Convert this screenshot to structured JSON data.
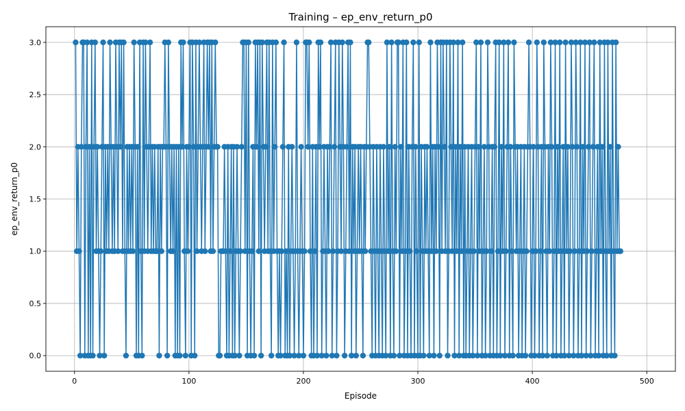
{
  "chart_data": {
    "type": "line",
    "title": "Training – ep_env_return_p0",
    "xlabel": "Episode",
    "ylabel": "ep_env_return_p0",
    "xlim": [
      -25,
      525
    ],
    "ylim": [
      -0.15,
      3.15
    ],
    "xticks": [
      0,
      100,
      200,
      300,
      400,
      500
    ],
    "xtick_labels": [
      "0",
      "100",
      "200",
      "300",
      "400",
      "500"
    ],
    "yticks": [
      0.0,
      0.5,
      1.0,
      1.5,
      2.0,
      2.5,
      3.0
    ],
    "ytick_labels": [
      "0.0",
      "0.5",
      "1.0",
      "1.5",
      "2.0",
      "2.5",
      "3.0"
    ],
    "grid": true,
    "marker": "circle",
    "series": [
      {
        "name": "ep_env_return_p0",
        "color": "#1f77b4",
        "x_start": 1,
        "x_step": 1,
        "values": [
          3,
          1,
          2,
          1,
          0,
          2,
          3,
          3,
          0,
          2,
          3,
          0,
          2,
          0,
          3,
          0,
          2,
          3,
          1,
          2,
          1,
          0,
          1,
          2,
          3,
          0,
          2,
          1,
          2,
          1,
          3,
          2,
          1,
          2,
          1,
          3,
          2,
          1,
          3,
          2,
          3,
          1,
          3,
          1,
          0,
          2,
          1,
          2,
          1,
          2,
          1,
          3,
          2,
          0,
          2,
          0,
          3,
          1,
          0,
          3,
          1,
          3,
          2,
          1,
          2,
          3,
          1,
          2,
          1,
          2,
          1,
          1,
          2,
          0,
          2,
          1,
          2,
          2,
          3,
          2,
          0,
          3,
          2,
          1,
          2,
          1,
          2,
          0,
          2,
          0,
          2,
          0,
          3,
          2,
          3,
          1,
          0,
          2,
          1,
          2,
          3,
          0,
          3,
          2,
          0,
          3,
          1,
          2,
          3,
          2,
          1,
          2,
          3,
          1,
          2,
          3,
          2,
          3,
          1,
          3,
          1,
          2,
          3,
          2,
          2,
          0,
          0,
          1,
          1,
          1,
          2,
          1,
          0,
          2,
          0,
          1,
          2,
          0,
          2,
          0,
          1,
          2,
          1,
          0,
          1,
          2,
          3,
          3,
          1,
          3,
          0,
          3,
          1,
          0,
          1,
          2,
          0,
          3,
          2,
          3,
          1,
          3,
          0,
          3,
          2,
          1,
          2,
          3,
          1,
          3,
          1,
          0,
          3,
          1,
          2,
          3,
          1,
          0,
          1,
          0,
          1,
          2,
          3,
          0,
          1,
          0,
          2,
          0,
          1,
          2,
          1,
          0,
          1,
          3,
          1,
          0,
          1,
          2,
          1,
          0,
          1,
          3,
          3,
          2,
          3,
          1,
          0,
          2,
          0,
          1,
          2,
          0,
          3,
          2,
          3,
          0,
          1,
          2,
          1,
          0,
          2,
          1,
          2,
          3,
          0,
          1,
          2,
          3,
          0,
          1,
          3,
          2,
          1,
          3,
          2,
          0,
          1,
          2,
          3,
          1,
          3,
          0,
          2,
          1,
          2,
          0,
          1,
          2,
          1,
          2,
          1,
          0,
          2,
          1,
          2,
          3,
          3,
          2,
          1,
          0,
          2,
          1,
          0,
          2,
          1,
          0,
          2,
          1,
          0,
          2,
          1,
          0,
          3,
          1,
          2,
          0,
          3,
          1,
          0,
          2,
          1,
          3,
          3,
          0,
          2,
          1,
          3,
          0,
          1,
          3,
          0,
          2,
          1,
          0,
          2,
          3,
          0,
          2,
          1,
          0,
          3,
          0,
          2,
          1,
          0,
          2,
          1,
          2,
          1,
          0,
          3,
          1,
          2,
          0,
          2,
          1,
          3,
          2,
          0,
          3,
          1,
          3,
          2,
          1,
          3,
          0,
          1,
          3,
          2,
          1,
          3,
          0,
          2,
          1,
          3,
          0,
          2,
          1,
          3,
          0,
          2,
          0,
          1,
          2,
          0,
          1,
          2,
          0,
          1,
          2,
          3,
          0,
          2,
          1,
          3,
          0,
          1,
          2,
          0,
          1,
          3,
          2,
          0,
          1,
          2,
          0,
          2,
          3,
          0,
          1,
          3,
          0,
          2,
          1,
          3,
          0,
          1,
          2,
          3,
          0,
          2,
          1,
          0,
          3,
          2,
          1,
          2,
          0,
          1,
          2,
          0,
          1,
          2,
          0,
          1,
          2,
          3,
          2,
          0,
          1,
          2,
          0,
          1,
          3,
          2,
          0,
          1,
          2,
          0,
          3,
          2,
          1,
          0,
          2,
          1,
          3,
          2,
          0,
          1,
          3,
          0,
          2,
          1,
          3,
          0,
          1,
          2,
          0,
          3,
          1,
          2,
          0,
          1,
          3,
          2,
          0,
          1,
          3,
          2,
          0,
          1,
          3,
          0,
          2,
          1,
          3,
          0,
          1,
          2,
          3,
          0,
          1,
          2,
          3,
          0,
          1,
          2,
          0,
          3,
          1,
          2,
          0,
          3,
          1,
          0,
          3,
          1,
          2,
          0,
          3,
          1,
          0,
          3,
          1,
          2,
          1,
          1
        ]
      }
    ]
  }
}
